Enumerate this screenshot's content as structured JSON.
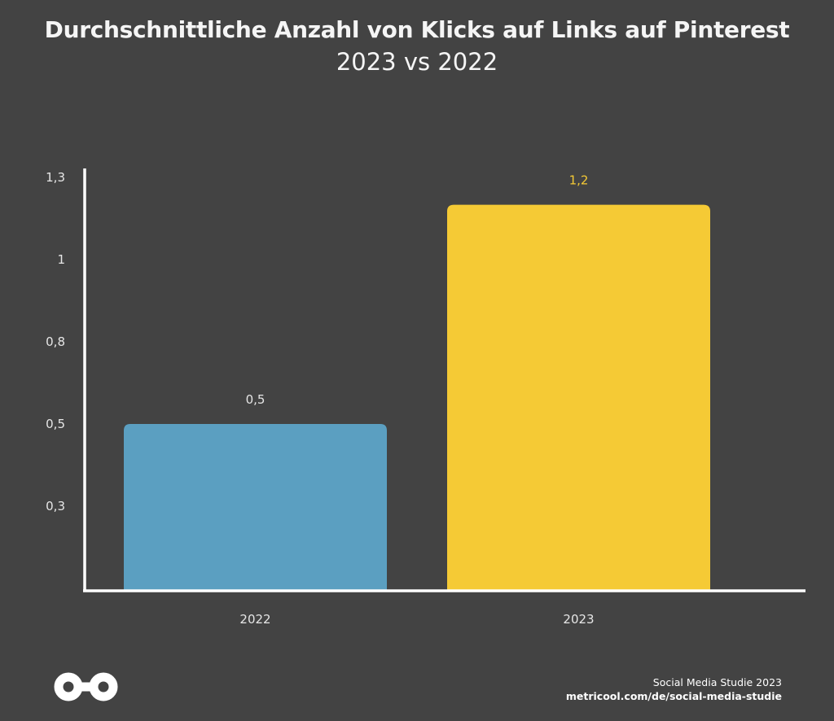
{
  "header": {
    "title": "Durchschnittliche Anzahl von Klicks auf Links auf Pinterest",
    "subtitle": "2023 vs 2022"
  },
  "chart_data": {
    "type": "bar",
    "categories": [
      "2022",
      "2023"
    ],
    "values": [
      0.5,
      1.2
    ],
    "value_labels": [
      "0,5",
      "1,2"
    ],
    "colors": [
      "#5b9fc1",
      "#f5ca35"
    ],
    "label_colors": [
      "#e6e6e6",
      "#f5ca35"
    ],
    "y_ticks": [
      {
        "value": 0.3,
        "label": "0,3"
      },
      {
        "value": 0.5,
        "label": "0,5"
      },
      {
        "value": 0.8,
        "label": "0,8"
      },
      {
        "value": 1.0,
        "label": "1"
      },
      {
        "value": 1.3,
        "label": "1,3"
      }
    ],
    "title": "Durchschnittliche Anzahl von Klicks auf Links auf Pinterest",
    "subtitle": "2023 vs 2022",
    "xlabel": "",
    "ylabel": "",
    "grid": false
  },
  "footer": {
    "line1": "Social Media Studie 2023",
    "url": "metricool.com/de/social-media-studie"
  },
  "logo": {
    "icon": "metricool-logo-icon",
    "color": "#ffffff"
  }
}
